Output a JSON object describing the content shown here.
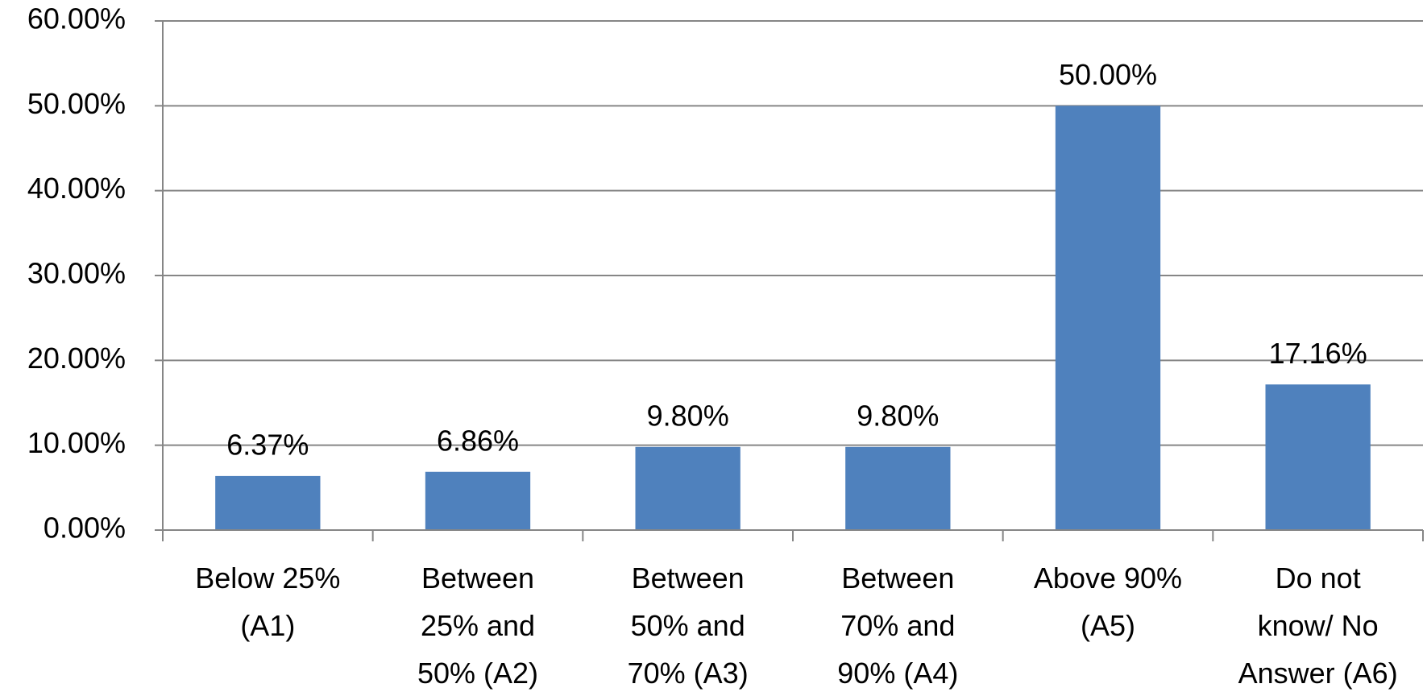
{
  "chart_data": {
    "type": "bar",
    "categories": [
      "Below 25%\n(A1)",
      "Between\n25% and\n50% (A2)",
      "Between\n50% and\n70% (A3)",
      "Between\n70% and\n90% (A4)",
      "Above 90%\n(A5)",
      "Do not\nknow/ No\nAnswer (A6)"
    ],
    "values": [
      6.37,
      6.86,
      9.8,
      9.8,
      50,
      17.16
    ],
    "value_labels": [
      "6.37%",
      "6.86%",
      "9.80%",
      "9.80%",
      "50.00%",
      "17.16%"
    ],
    "color": "#4f81bd",
    "ylim": [
      0,
      60
    ],
    "yticks": [
      {
        "value": 0,
        "label": "0.00%"
      },
      {
        "value": 10,
        "label": "10.00%"
      },
      {
        "value": 20,
        "label": "20.00%"
      },
      {
        "value": 30,
        "label": "30.00%"
      },
      {
        "value": 40,
        "label": "40.00%"
      },
      {
        "value": 50,
        "label": "50.00%"
      },
      {
        "value": 60,
        "label": "60.00%"
      }
    ],
    "grid": true
  }
}
